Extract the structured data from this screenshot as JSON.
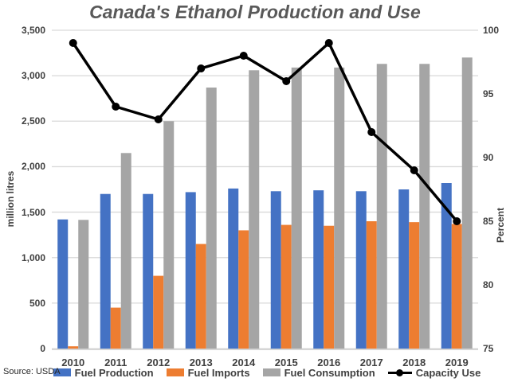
{
  "title": "Canada's Ethanol Production and Use",
  "source": "Source: USDA",
  "colors": {
    "production_bar": "#4472C4",
    "imports_bar": "#ED7D31",
    "consumption_bar": "#A5A5A5",
    "capacity_line": "#000000",
    "gridline": "#D9D9D9",
    "axis_line": "#D6D6D6",
    "title_text": "#595959",
    "axis_text": "#404040"
  },
  "chart_data": {
    "type": "bar",
    "subtype": "grouped bars with overlaid line on secondary axis",
    "title": "Canada's Ethanol Production and Use",
    "categories": [
      "2010",
      "2011",
      "2012",
      "2013",
      "2014",
      "2015",
      "2016",
      "2017",
      "2018",
      "2019"
    ],
    "series": [
      {
        "name": "Fuel Production",
        "type": "bar",
        "axis": "left",
        "color": "#4472C4",
        "values": [
          1420,
          1700,
          1700,
          1720,
          1760,
          1730,
          1740,
          1730,
          1750,
          1820
        ]
      },
      {
        "name": "Fuel Imports",
        "type": "bar",
        "axis": "left",
        "color": "#ED7D31",
        "values": [
          25,
          450,
          800,
          1150,
          1300,
          1360,
          1350,
          1400,
          1390,
          1370
        ]
      },
      {
        "name": "Fuel Consumption",
        "type": "bar",
        "axis": "left",
        "color": "#A5A5A5",
        "values": [
          1415,
          2150,
          2500,
          2870,
          3060,
          3090,
          3090,
          3130,
          3130,
          3200
        ]
      },
      {
        "name": "Capacity Use",
        "type": "line",
        "axis": "right",
        "color": "#000000",
        "values": [
          99,
          94,
          93,
          97,
          98,
          96,
          99,
          92,
          89,
          85
        ]
      }
    ],
    "y_left": {
      "label": "million litres",
      "min": 0,
      "max": 3500,
      "tick_step": 500,
      "ticks": [
        "0",
        "500",
        "1,000",
        "1,500",
        "2,000",
        "2,500",
        "3,000",
        "3,500"
      ]
    },
    "y_right": {
      "label": "Percent",
      "min": 75,
      "max": 100,
      "tick_step": 5,
      "ticks": [
        "75",
        "80",
        "85",
        "90",
        "95",
        "100"
      ]
    },
    "grid": "horizontal gridlines on",
    "legend_position": "bottom"
  }
}
